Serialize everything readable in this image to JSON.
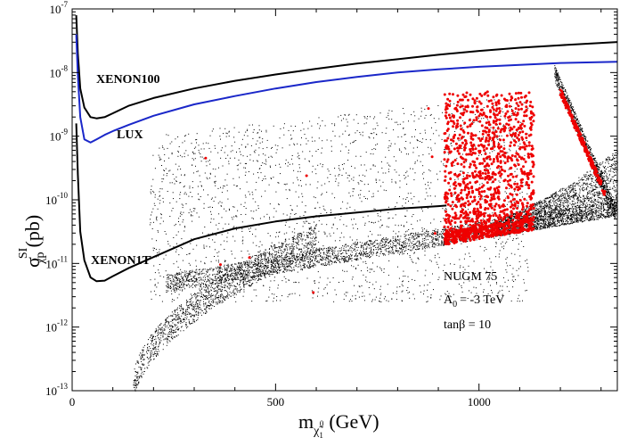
{
  "chart_data": {
    "type": "scatter",
    "title": "",
    "xlabel": {
      "main": "m",
      "sub": "χ̃",
      "subsub": "1",
      "supsub": "0",
      "units": "(GeV)"
    },
    "ylabel": {
      "main": "σ",
      "sup": "SI",
      "sub": "χp",
      "units": "(pb)"
    },
    "xscale": "linear",
    "yscale": "log",
    "xlim": [
      0,
      1340
    ],
    "ylim_exp": [
      -13,
      -7
    ],
    "xticks": [
      0,
      500,
      1000
    ],
    "yticks": [
      -13,
      -12,
      -11,
      -10,
      -9,
      -8,
      -7
    ],
    "ytick_base": "10",
    "annotations": [
      "NUGM 75",
      "A",
      "0",
      "= -3 TeV",
      "tanβ = 10"
    ],
    "colors": {
      "limits": "#000000",
      "lux": "#1a27c9",
      "scatter": "#000000",
      "highlight": "#ee0000"
    },
    "series": [
      {
        "name": "XENON100",
        "type": "line",
        "color": "#000000",
        "x": [
          10,
          14,
          20,
          30,
          45,
          60,
          80,
          100,
          140,
          200,
          300,
          400,
          500,
          600,
          700,
          800,
          900,
          1000,
          1100,
          1200,
          1340
        ],
        "logy": [
          -7.1,
          -7.7,
          -8.25,
          -8.55,
          -8.7,
          -8.72,
          -8.7,
          -8.64,
          -8.52,
          -8.4,
          -8.25,
          -8.13,
          -8.03,
          -7.94,
          -7.86,
          -7.79,
          -7.72,
          -7.66,
          -7.61,
          -7.57,
          -7.52
        ]
      },
      {
        "name": "LUX",
        "type": "line",
        "color": "#1a27c9",
        "x": [
          10,
          14,
          20,
          30,
          45,
          60,
          80,
          100,
          140,
          200,
          300,
          400,
          500,
          600,
          700,
          800,
          900,
          1000,
          1100,
          1200,
          1340
        ],
        "logy": [
          -7.4,
          -8.05,
          -8.7,
          -9.05,
          -9.1,
          -9.05,
          -8.98,
          -8.92,
          -8.82,
          -8.68,
          -8.5,
          -8.37,
          -8.25,
          -8.15,
          -8.07,
          -8.0,
          -7.95,
          -7.91,
          -7.88,
          -7.85,
          -7.83
        ]
      },
      {
        "name": "XENON1T",
        "type": "line",
        "color": "#000000",
        "x": [
          10,
          14,
          20,
          30,
          45,
          60,
          80,
          100,
          140,
          200,
          300,
          400,
          500,
          600,
          700,
          800,
          900,
          920
        ],
        "logy": [
          -8.8,
          -9.6,
          -10.5,
          -10.95,
          -11.22,
          -11.28,
          -11.27,
          -11.2,
          -11.07,
          -10.9,
          -10.62,
          -10.45,
          -10.34,
          -10.26,
          -10.2,
          -10.14,
          -10.1,
          -10.09
        ]
      }
    ],
    "labels": [
      "XENON100",
      "LUX",
      "XENON1T"
    ]
  }
}
